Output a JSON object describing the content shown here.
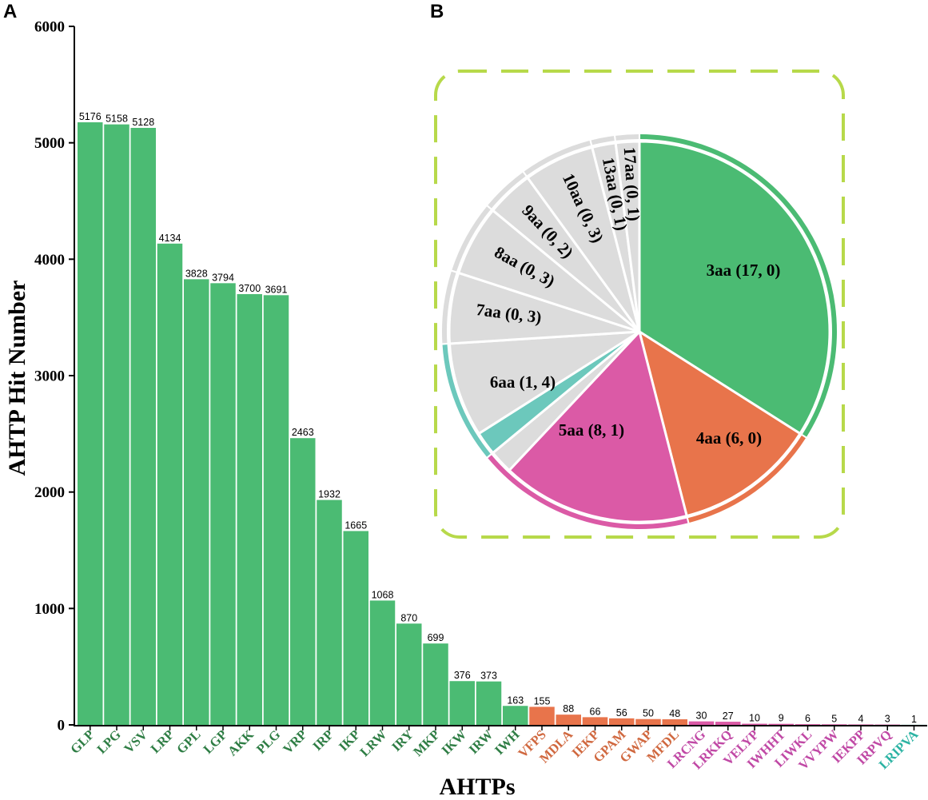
{
  "panels": {
    "a": "A",
    "b": "B"
  },
  "colors": {
    "green": "#4bbb73",
    "green_text": "#2e7d44",
    "orange": "#e8744b",
    "orange_text": "#d0683f",
    "pink": "#db5aa6",
    "pink_text": "#c048a5",
    "teal": "#6cc8bc",
    "teal_text": "#2bb3a3",
    "gray": "#dcdcdc",
    "border": "#b7d94a"
  },
  "chart_data": [
    {
      "type": "bar",
      "title": "",
      "xlabel": "AHTPs",
      "ylabel": "AHTP Hit Number",
      "ylim": [
        0,
        6000
      ],
      "yticks": [
        "0",
        "1000",
        "2000",
        "3000",
        "4000",
        "5000",
        "6000"
      ],
      "categories": [
        "GLP",
        "LPG",
        "VSV",
        "LRP",
        "GPL",
        "LGP",
        "AKK",
        "PLG",
        "VRP",
        "IRP",
        "IKP",
        "LRW",
        "IRY",
        "MKP",
        "IKW",
        "IRW",
        "IWH",
        "VFPS",
        "MDLA",
        "IEKP",
        "GPAM",
        "GWAP",
        "MFDL",
        "LRCNG",
        "LRKKQ",
        "VELYP",
        "IWHHT",
        "LIWKL",
        "VVYPW",
        "IEKPP",
        "IRPVQ",
        "LRIPVA"
      ],
      "values": [
        5176,
        5158,
        5128,
        4134,
        3828,
        3794,
        3700,
        3691,
        2463,
        1932,
        1665,
        1068,
        870,
        699,
        376,
        373,
        163,
        155,
        88,
        66,
        56,
        50,
        48,
        30,
        27,
        10,
        9,
        6,
        5,
        4,
        3,
        1
      ],
      "value_labels": [
        "5176",
        "5158",
        "5128",
        "4134",
        "3828",
        "3794",
        "3700",
        "3691",
        "2463",
        "1932",
        "1665",
        "1068",
        "870",
        "699",
        "376",
        "373",
        "163",
        "155",
        "88",
        "66",
        "56",
        "50",
        "48",
        "30",
        "27",
        "10",
        "9",
        "6",
        "5",
        "4",
        "3",
        "1"
      ],
      "groups": [
        "green",
        "green",
        "green",
        "green",
        "green",
        "green",
        "green",
        "green",
        "green",
        "green",
        "green",
        "green",
        "green",
        "green",
        "green",
        "green",
        "green",
        "orange",
        "orange",
        "orange",
        "orange",
        "orange",
        "orange",
        "pink",
        "pink",
        "pink",
        "pink",
        "pink",
        "pink",
        "pink",
        "pink",
        "teal"
      ]
    },
    {
      "type": "pie",
      "title": "",
      "slices": [
        {
          "label": "3aa (17, 0)",
          "length": "3aa",
          "known": 17,
          "novel": 0
        },
        {
          "label": "4aa (6, 0)",
          "length": "4aa",
          "known": 6,
          "novel": 0
        },
        {
          "label": "5aa (8, 1)",
          "length": "5aa",
          "known": 8,
          "novel": 1
        },
        {
          "label": "6aa (1, 4)",
          "length": "6aa",
          "known": 1,
          "novel": 4
        },
        {
          "label": "7aa (0, 3)",
          "length": "7aa",
          "known": 0,
          "novel": 3
        },
        {
          "label": "8aa (0, 3)",
          "length": "8aa",
          "known": 0,
          "novel": 3
        },
        {
          "label": "9aa (0, 2)",
          "length": "9aa",
          "known": 0,
          "novel": 2
        },
        {
          "label": "10aa (0, 3)",
          "length": "10aa",
          "known": 0,
          "novel": 3
        },
        {
          "label": "13aa (0, 1)",
          "length": "13aa",
          "known": 0,
          "novel": 1
        },
        {
          "label": "17aa (0, 1)",
          "length": "17aa",
          "known": 0,
          "novel": 1
        }
      ]
    }
  ]
}
